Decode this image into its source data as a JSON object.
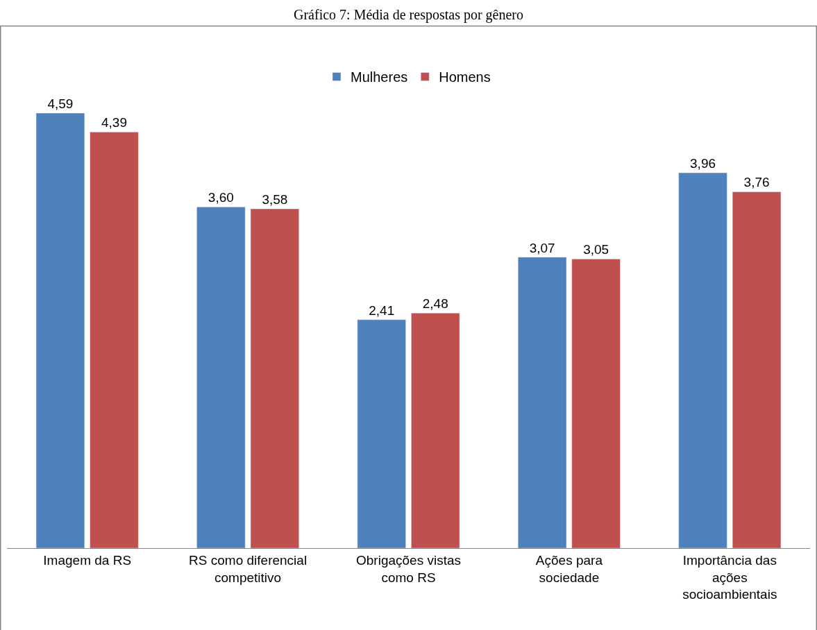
{
  "chart_data": {
    "type": "bar",
    "title": "Gráfico 7: Média de respostas por gênero",
    "categories": [
      "Imagem da RS",
      "RS como diferencial competitivo",
      "Obrigações vistas como RS",
      "Ações para sociedade",
      "Importância das ações socioambientais"
    ],
    "series": [
      {
        "name": "Mulheres",
        "color": "#4f81bd",
        "values": [
          4.59,
          3.6,
          2.41,
          3.07,
          3.96
        ],
        "value_labels": [
          "4,59",
          "3,60",
          "2,41",
          "3,07",
          "3,96"
        ]
      },
      {
        "name": "Homens",
        "color": "#c0504d",
        "values": [
          4.39,
          3.58,
          2.48,
          3.05,
          3.76
        ],
        "value_labels": [
          "4,39",
          "3,58",
          "2,48",
          "3,05",
          "3,76"
        ]
      }
    ],
    "legend": "top"
  }
}
